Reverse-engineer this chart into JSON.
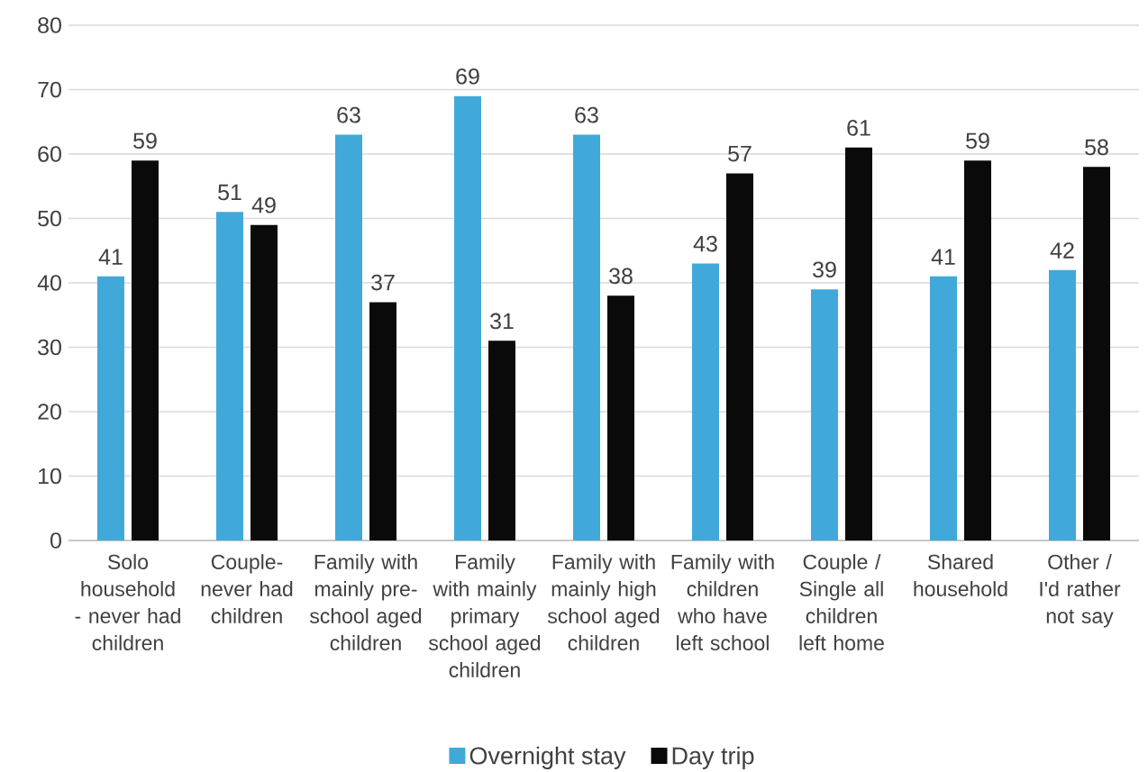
{
  "chart_data": {
    "type": "bar",
    "categories": [
      "Solo household - never had children",
      "Couple- never had children",
      "Family with mainly pre-school aged children",
      "Family with mainly primary school aged children",
      "Family with mainly high school aged children",
      "Family with children who have left school",
      "Couple / Single all children left home",
      "Shared household",
      "Other / I'd rather not say"
    ],
    "series": [
      {
        "name": "Overnight stay",
        "color": "#41a9d9",
        "values": [
          41,
          51,
          63,
          69,
          63,
          43,
          39,
          41,
          42
        ]
      },
      {
        "name": "Day trip",
        "color": "#0a0a0a",
        "values": [
          59,
          49,
          37,
          31,
          38,
          57,
          61,
          59,
          58
        ]
      }
    ],
    "ylim": [
      0,
      80
    ],
    "yticks": [
      0,
      10,
      20,
      30,
      40,
      50,
      60,
      70,
      80
    ],
    "grid": "y",
    "legend": "bottom",
    "data_labels": true
  }
}
